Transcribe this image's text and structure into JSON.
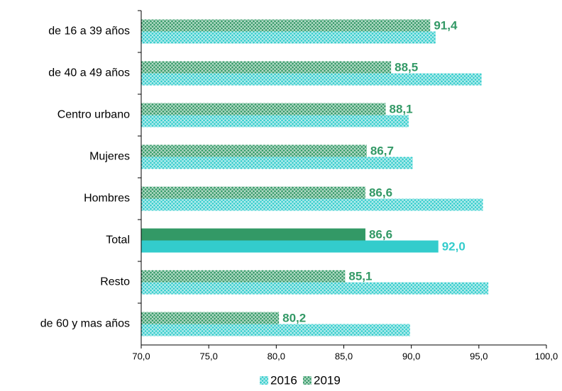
{
  "chart_data": {
    "type": "hbar",
    "categories": [
      "de 16 a 39 años",
      "de 40 a 49 años",
      "Centro urbano",
      "Mujeres",
      "Hombres",
      "Total",
      "Resto",
      "de 60 y mas años"
    ],
    "series": [
      {
        "name": "2016",
        "color": "#33cccc",
        "values": [
          91.8,
          95.2,
          89.8,
          90.1,
          95.3,
          92.0,
          95.7,
          89.9
        ],
        "value_labels": [
          null,
          null,
          null,
          null,
          null,
          "92,0",
          null,
          null
        ]
      },
      {
        "name": "2019",
        "color": "#339966",
        "values": [
          91.4,
          88.5,
          88.1,
          86.7,
          86.6,
          86.6,
          85.1,
          80.2
        ],
        "value_labels": [
          "91,4",
          "88,5",
          "88,1",
          "86,7",
          "86,6",
          "86,6",
          "85,1",
          "80,2"
        ]
      }
    ],
    "highlight_index": 5,
    "xlim": [
      70,
      100
    ],
    "xticks": [
      {
        "value": 70,
        "label": "70,0"
      },
      {
        "value": 75,
        "label": "75,0"
      },
      {
        "value": 80,
        "label": "80,0"
      },
      {
        "value": 85,
        "label": "85,0"
      },
      {
        "value": 90,
        "label": "90,0"
      },
      {
        "value": 95,
        "label": "95,0"
      },
      {
        "value": 100,
        "label": "100,0"
      }
    ],
    "legend": "bottom"
  }
}
